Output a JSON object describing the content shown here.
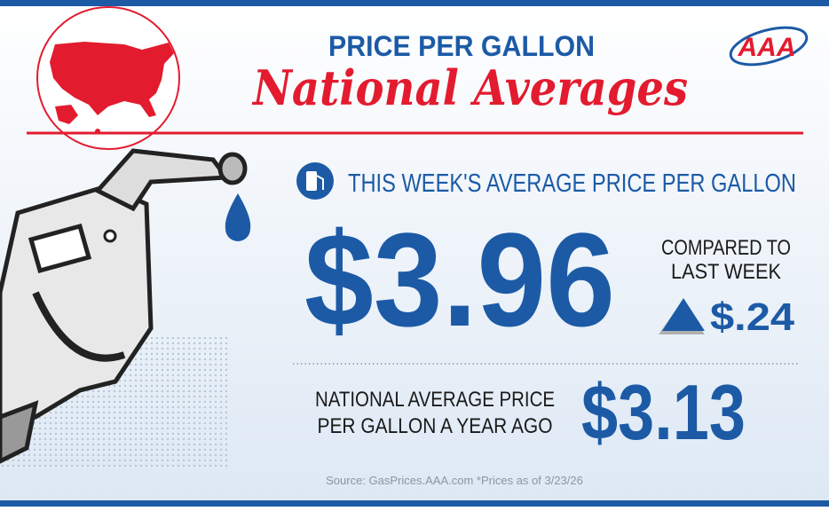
{
  "header": {
    "title": "PRICE PER GALLON",
    "subtitle": "National Averages",
    "logo": "AAA"
  },
  "this_week": {
    "label": "THIS WEEK'S AVERAGE PRICE PER GALLON",
    "price": "$3.96",
    "comparison": {
      "label_lines": [
        "COMPARED TO",
        "LAST WEEK"
      ],
      "change": "$.24"
    }
  },
  "year_ago": {
    "label_lines": [
      "NATIONAL AVERAGE PRICE",
      "PER GALLON A YEAR AGO"
    ],
    "price": "$3.13"
  },
  "footer": {
    "source": "Source: GasPrices.AAA.com *Prices as of 3/23/26"
  }
}
